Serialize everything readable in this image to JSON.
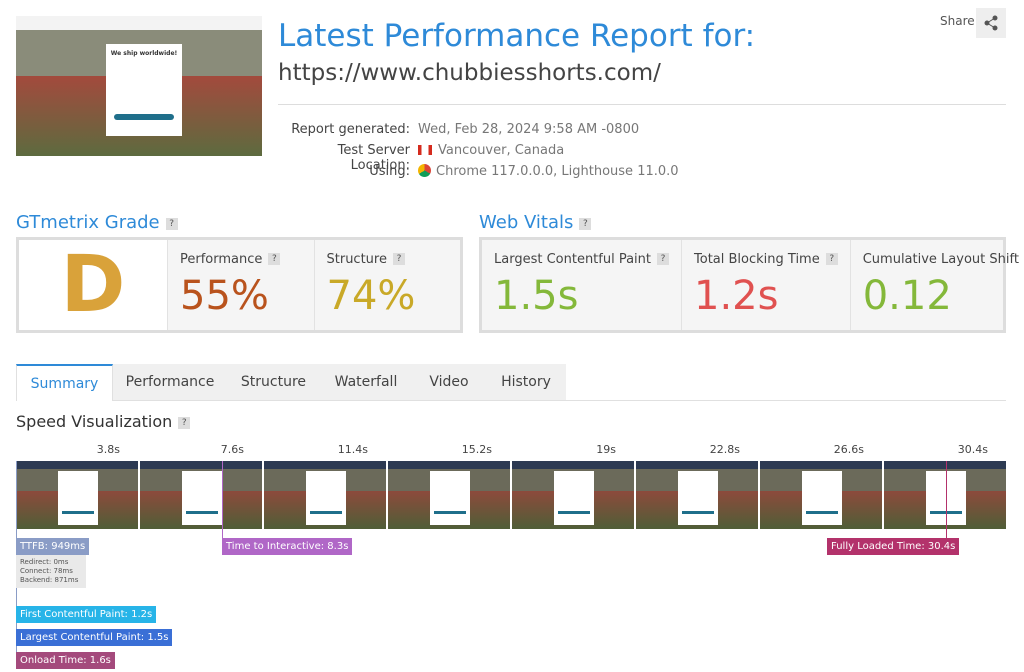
{
  "header": {
    "title": "Latest Performance Report for:",
    "url": "https://www.chubbiesshorts.com/",
    "share": "Share"
  },
  "thumbnail": {
    "popup_title": "We ship worldwide!"
  },
  "meta": [
    {
      "label": "Report generated:",
      "value": "Wed, Feb 28, 2024 9:58 AM -0800"
    },
    {
      "label": "Test Server Location:",
      "value": "Vancouver, Canada"
    },
    {
      "label": "Using:",
      "value": "Chrome 117.0.0.0, Lighthouse 11.0.0"
    }
  ],
  "help": "?",
  "grade": {
    "title": "GTmetrix Grade",
    "letter": "D",
    "metrics": [
      {
        "label": "Performance",
        "value": "55%"
      },
      {
        "label": "Structure",
        "value": "74%"
      }
    ]
  },
  "vitals": {
    "title": "Web Vitals",
    "metrics": [
      {
        "label": "Largest Contentful Paint",
        "value": "1.5s"
      },
      {
        "label": "Total Blocking Time",
        "value": "1.2s"
      },
      {
        "label": "Cumulative Layout Shift",
        "value": "0.12"
      }
    ]
  },
  "tabs": [
    "Summary",
    "Performance",
    "Structure",
    "Waterfall",
    "Video",
    "History"
  ],
  "speed": {
    "title": "Speed Visualization",
    "frames": [
      "3.8s",
      "7.6s",
      "11.4s",
      "15.2s",
      "19s",
      "22.8s",
      "26.6s",
      "30.4s"
    ],
    "ttfb": "TTFB: 949ms",
    "ttfb_details": [
      "Redirect: 0ms",
      "Connect: 78ms",
      "Backend: 871ms"
    ],
    "tti": "Time to Interactive: 8.3s",
    "fully_loaded": "Fully Loaded Time: 30.4s",
    "fcp": "First Contentful Paint: 1.2s",
    "lcp": "Largest Contentful Paint: 1.5s",
    "onload": "Onload Time: 1.6s"
  }
}
